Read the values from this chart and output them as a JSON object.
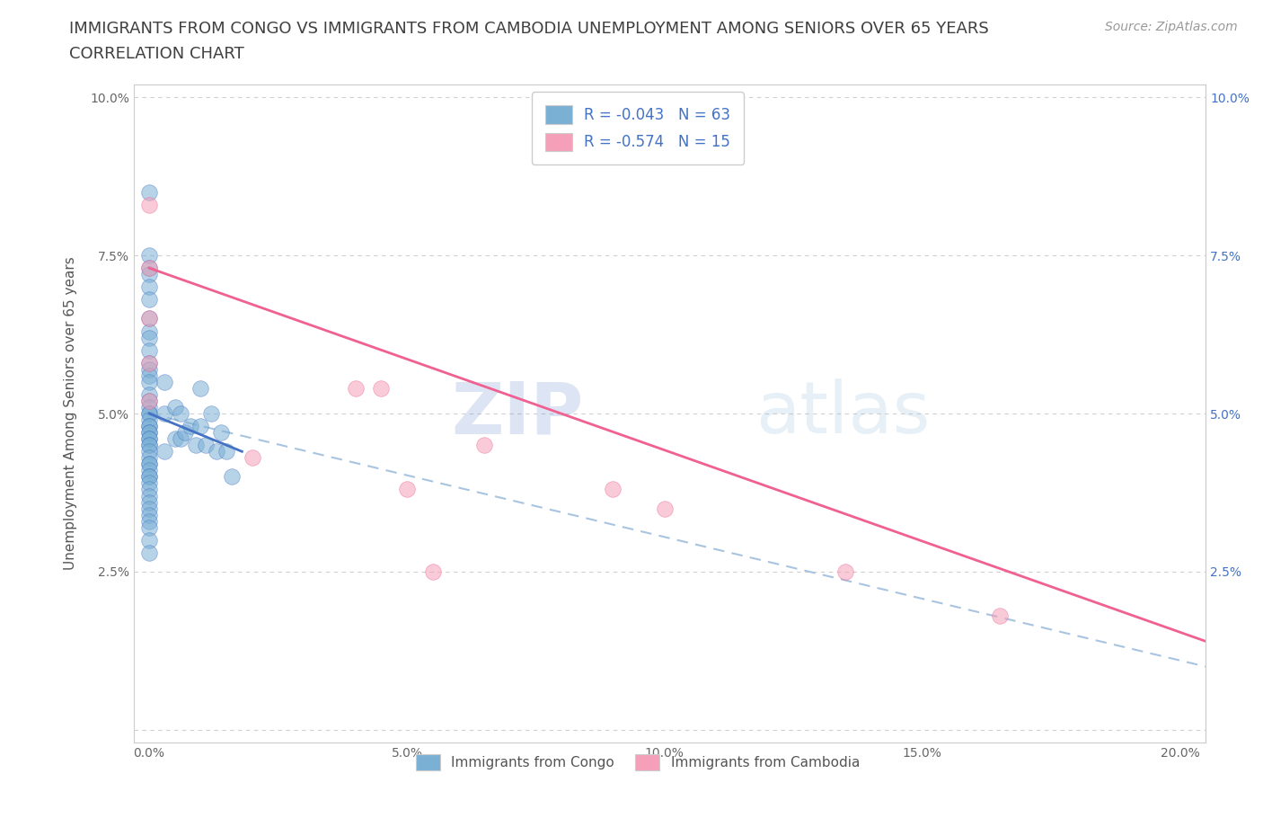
{
  "title_line1": "IMMIGRANTS FROM CONGO VS IMMIGRANTS FROM CAMBODIA UNEMPLOYMENT AMONG SENIORS OVER 65 YEARS",
  "title_line2": "CORRELATION CHART",
  "source_text": "Source: ZipAtlas.com",
  "ylabel": "Unemployment Among Seniors over 65 years",
  "xlim": [
    -0.003,
    0.205
  ],
  "ylim": [
    -0.002,
    0.102
  ],
  "xticks": [
    0.0,
    0.05,
    0.1,
    0.15,
    0.2
  ],
  "xtick_labels": [
    "0.0%",
    "5.0%",
    "10.0%",
    "15.0%",
    "20.0%"
  ],
  "yticks": [
    0.0,
    0.025,
    0.05,
    0.075,
    0.1
  ],
  "ytick_labels_left": [
    "",
    "2.5%",
    "5.0%",
    "7.5%",
    "10.0%"
  ],
  "ytick_labels_right": [
    "",
    "2.5%",
    "5.0%",
    "7.5%",
    "10.0%"
  ],
  "watermark": "ZIPatlas",
  "legend_label_congo": "Immigrants from Congo",
  "legend_label_cambodia": "Immigrants from Cambodia",
  "congo_scatter_color": "#7ab0d4",
  "cambodia_scatter_color": "#f5a0b8",
  "congo_line_color": "#4472c4",
  "cambodia_line_color": "#f06090",
  "trendline_dashed_color": "#a8c4e0",
  "background_color": "#ffffff",
  "title_color": "#404040",
  "title_fontsize": 13,
  "subtitle_fontsize": 13,
  "axis_label_fontsize": 11,
  "tick_fontsize": 10,
  "source_fontsize": 10,
  "congo_x": [
    0.0,
    0.0,
    0.0,
    0.0,
    0.0,
    0.0,
    0.0,
    0.0,
    0.0,
    0.0,
    0.0,
    0.0,
    0.0,
    0.0,
    0.0,
    0.0,
    0.0,
    0.0,
    0.0,
    0.0,
    0.0,
    0.0,
    0.0,
    0.0,
    0.0,
    0.0,
    0.0,
    0.0,
    0.0,
    0.0,
    0.0,
    0.0,
    0.0,
    0.0,
    0.0,
    0.0,
    0.0,
    0.0,
    0.0,
    0.0,
    0.0,
    0.0,
    0.0,
    0.0,
    0.0,
    0.003,
    0.003,
    0.003,
    0.005,
    0.005,
    0.006,
    0.006,
    0.007,
    0.008,
    0.009,
    0.01,
    0.01,
    0.011,
    0.012,
    0.013,
    0.014,
    0.015,
    0.016
  ],
  "congo_y": [
    0.085,
    0.075,
    0.073,
    0.072,
    0.07,
    0.068,
    0.065,
    0.063,
    0.062,
    0.06,
    0.058,
    0.057,
    0.056,
    0.055,
    0.053,
    0.052,
    0.051,
    0.05,
    0.05,
    0.049,
    0.048,
    0.048,
    0.047,
    0.047,
    0.046,
    0.046,
    0.045,
    0.045,
    0.044,
    0.043,
    0.042,
    0.042,
    0.041,
    0.04,
    0.04,
    0.039,
    0.038,
    0.037,
    0.036,
    0.035,
    0.034,
    0.033,
    0.032,
    0.03,
    0.028,
    0.055,
    0.05,
    0.044,
    0.051,
    0.046,
    0.05,
    0.046,
    0.047,
    0.048,
    0.045,
    0.054,
    0.048,
    0.045,
    0.05,
    0.044,
    0.047,
    0.044,
    0.04
  ],
  "cambodia_x": [
    0.0,
    0.0,
    0.0,
    0.0,
    0.0,
    0.02,
    0.04,
    0.045,
    0.05,
    0.055,
    0.065,
    0.09,
    0.1,
    0.135,
    0.165
  ],
  "cambodia_y": [
    0.083,
    0.073,
    0.065,
    0.058,
    0.052,
    0.043,
    0.054,
    0.054,
    0.038,
    0.025,
    0.045,
    0.038,
    0.035,
    0.025,
    0.018
  ],
  "congo_trend_x": [
    0.0,
    0.018
  ],
  "congo_trend_y": [
    0.05,
    0.044
  ],
  "cambodia_trend_x": [
    0.0,
    0.205
  ],
  "cambodia_trend_y": [
    0.073,
    0.014
  ],
  "dashed_trend_x": [
    0.0,
    0.205
  ],
  "dashed_trend_y": [
    0.05,
    0.01
  ]
}
